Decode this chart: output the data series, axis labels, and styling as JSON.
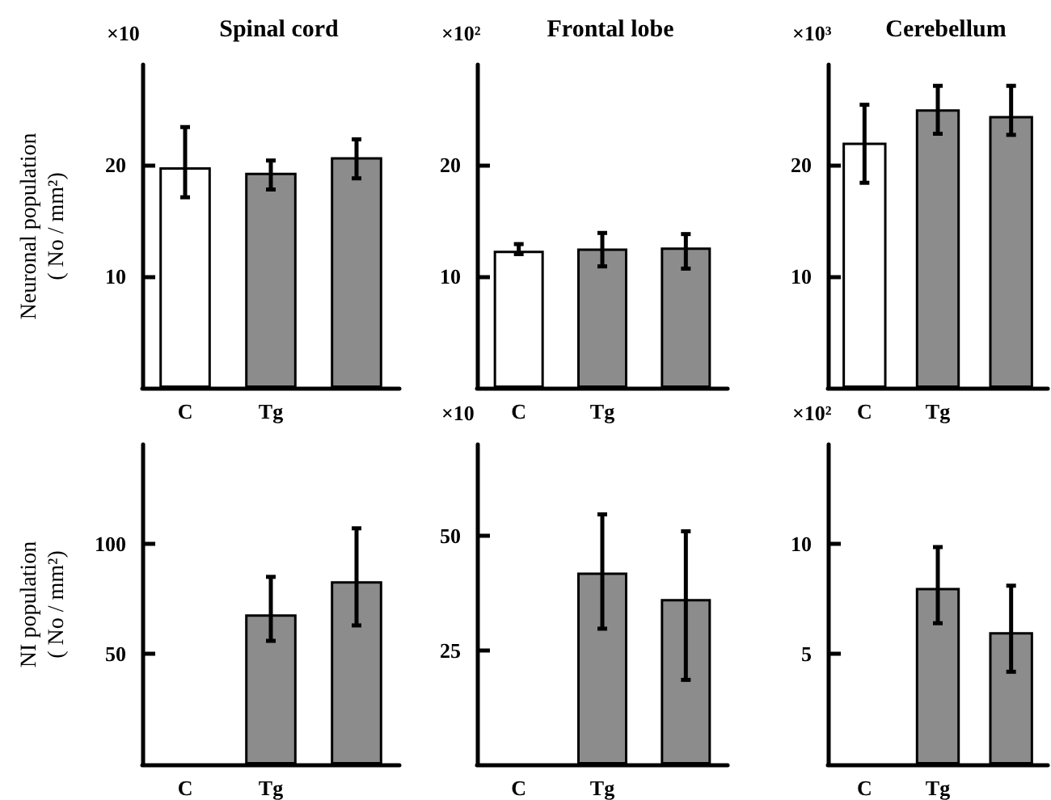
{
  "chart_data": [
    {
      "type": "bar",
      "title": "Spinal cord",
      "ylabel": "Neuronal population\n( No / mm²)",
      "annotations": [
        "×10"
      ],
      "categories": [
        "C",
        "Tg",
        null
      ],
      "values": [
        19.8,
        19.3,
        20.7
      ],
      "errors": [
        [
          17.1,
          23.4
        ],
        [
          17.8,
          20.4
        ],
        [
          18.8,
          22.3
        ]
      ],
      "colors": [
        "#ffffff",
        "#8c8c8c",
        "#8c8c8c"
      ],
      "ylim": [
        0,
        29
      ],
      "yticks": [
        10,
        20
      ]
    },
    {
      "type": "bar",
      "title": "Frontal lobe",
      "annotations": [
        "×10²"
      ],
      "categories": [
        "C",
        "Tg",
        null
      ],
      "values": [
        12.3,
        12.5,
        12.6
      ],
      "errors": [
        [
          12.0,
          12.9
        ],
        [
          10.9,
          13.9
        ],
        [
          10.7,
          13.8
        ]
      ],
      "colors": [
        "#ffffff",
        "#8c8c8c",
        "#8c8c8c"
      ],
      "ylim": [
        0,
        29
      ],
      "yticks": [
        10,
        20
      ]
    },
    {
      "type": "bar",
      "title": "Cerebellum",
      "annotations": [
        "×10³"
      ],
      "categories": [
        "C",
        "Tg",
        null
      ],
      "values": [
        22.0,
        25.0,
        24.4
      ],
      "errors": [
        [
          18.4,
          25.4
        ],
        [
          22.8,
          27.1
        ],
        [
          22.7,
          27.1
        ]
      ],
      "colors": [
        "#ffffff",
        "#8c8c8c",
        "#8c8c8c"
      ],
      "ylim": [
        0,
        29
      ],
      "yticks": [
        10,
        20
      ]
    },
    {
      "type": "bar",
      "ylabel": "NI population\n( No / mm²)",
      "categories": [
        "C",
        "Tg",
        null
      ],
      "values": [
        null,
        68,
        83
      ],
      "errors": [
        null,
        [
          56,
          85
        ],
        [
          63,
          107
        ]
      ],
      "colors": [
        "#ffffff",
        "#8c8c8c",
        "#8c8c8c"
      ],
      "ylim": [
        0,
        145
      ],
      "yticks": [
        50,
        100
      ]
    },
    {
      "type": "bar",
      "annotations": [
        "×10"
      ],
      "categories": [
        "C",
        "Tg",
        null
      ],
      "values": [
        null,
        42,
        36.2
      ],
      "errors": [
        null,
        [
          29.7,
          54.7
        ],
        [
          18.5,
          51
        ]
      ],
      "colors": [
        "#ffffff",
        "#8c8c8c",
        "#8c8c8c"
      ],
      "ylim": [
        0,
        70
      ],
      "yticks": [
        25,
        50
      ]
    },
    {
      "type": "bar",
      "annotations": [
        "×10²"
      ],
      "categories": [
        "C",
        "Tg",
        null
      ],
      "values": [
        null,
        8.0,
        6.0
      ],
      "errors": [
        null,
        [
          6.4,
          9.85
        ],
        [
          4.2,
          8.1
        ]
      ],
      "colors": [
        "#ffffff",
        "#8c8c8c",
        "#8c8c8c"
      ],
      "ylim": [
        0,
        14.5
      ],
      "yticks": [
        5,
        10
      ]
    }
  ]
}
